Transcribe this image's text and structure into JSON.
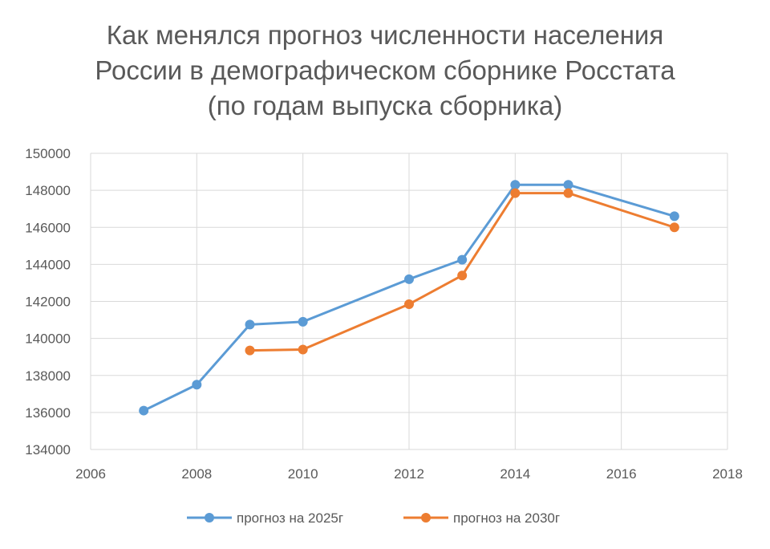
{
  "chart_data": {
    "type": "scatter",
    "title_lines": [
      "Как менялся прогноз численности населения",
      "России в демографическом сборнике Росстата",
      "(по годам выпуска сборника)"
    ],
    "xlabel": "",
    "ylabel": "",
    "xlim": [
      2006,
      2018
    ],
    "ylim": [
      134000,
      150000
    ],
    "x_ticks": [
      2006,
      2008,
      2010,
      2012,
      2014,
      2016,
      2018
    ],
    "y_ticks": [
      134000,
      136000,
      138000,
      140000,
      142000,
      144000,
      146000,
      148000,
      150000
    ],
    "grid": true,
    "legend_position": "bottom",
    "lines_connected": true,
    "series": [
      {
        "name": "прогноз на 2025г",
        "color": "#5B9BD5",
        "x": [
          2007,
          2008,
          2009,
          2010,
          2012,
          2013,
          2014,
          2015,
          2017
        ],
        "y": [
          136100,
          137500,
          140750,
          140900,
          143200,
          144250,
          148300,
          148300,
          146600
        ]
      },
      {
        "name": "прогноз на 2030г",
        "color": "#ED7D31",
        "x": [
          2009,
          2010,
          2012,
          2013,
          2014,
          2015,
          2017
        ],
        "y": [
          139350,
          139400,
          141850,
          143400,
          147850,
          147850,
          146000
        ]
      }
    ]
  }
}
